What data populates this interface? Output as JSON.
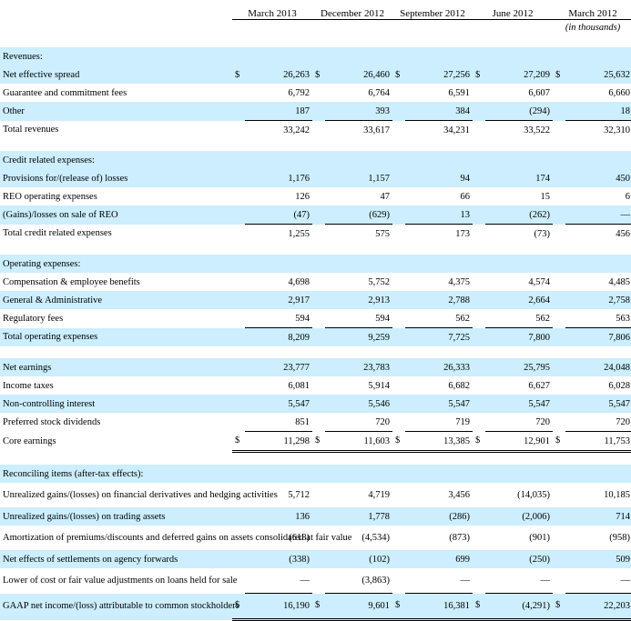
{
  "columns": [
    "March 2013",
    "December 2012",
    "September 2012",
    "June 2012",
    "March 2012"
  ],
  "units_note": "(in thousands)",
  "revenues": {
    "heading": "Revenues:",
    "rows": [
      {
        "label": "Net effective spread",
        "dollar": true,
        "values": [
          "26,263",
          "26,460",
          "27,256",
          "27,209",
          "25,632"
        ]
      },
      {
        "label": "Guarantee and commitment fees",
        "dollar": false,
        "values": [
          "6,792",
          "6,764",
          "6,591",
          "6,607",
          "6,660"
        ]
      },
      {
        "label": "Other",
        "dollar": false,
        "values": [
          "187",
          "393",
          "384",
          "(294)",
          "18"
        ]
      }
    ],
    "total": {
      "label": "Total revenues",
      "values": [
        "33,242",
        "33,617",
        "34,231",
        "33,522",
        "32,310"
      ]
    }
  },
  "credit": {
    "heading": "Credit related expenses:",
    "rows": [
      {
        "label": "Provisions for/(release of) losses",
        "values": [
          "1,176",
          "1,157",
          "94",
          "174",
          "450"
        ]
      },
      {
        "label": "REO operating expenses",
        "values": [
          "126",
          "47",
          "66",
          "15",
          "6"
        ]
      },
      {
        "label": "(Gains)/losses on sale of REO",
        "values": [
          "(47)",
          "(629)",
          "13",
          "(262)",
          "—"
        ]
      }
    ],
    "total": {
      "label": "Total credit related expenses",
      "values": [
        "1,255",
        "575",
        "173",
        "(73)",
        "456"
      ]
    }
  },
  "operating": {
    "heading": "Operating expenses:",
    "rows": [
      {
        "label": "Compensation & employee benefits",
        "values": [
          "4,698",
          "5,752",
          "4,375",
          "4,574",
          "4,485"
        ]
      },
      {
        "label": "General & Administrative",
        "values": [
          "2,917",
          "2,913",
          "2,788",
          "2,664",
          "2,758"
        ]
      },
      {
        "label": "Regulatory fees",
        "values": [
          "594",
          "594",
          "562",
          "562",
          "563"
        ]
      }
    ],
    "total": {
      "label": "Total operating expenses",
      "values": [
        "8,209",
        "9,259",
        "7,725",
        "7,800",
        "7,806"
      ]
    }
  },
  "earnings": {
    "rows": [
      {
        "label": "Net earnings",
        "values": [
          "23,777",
          "23,783",
          "26,333",
          "25,795",
          "24,048"
        ]
      },
      {
        "label": "Income taxes",
        "values": [
          "6,081",
          "5,914",
          "6,682",
          "6,627",
          "6,028"
        ]
      },
      {
        "label": "Non-controlling interest",
        "values": [
          "5,547",
          "5,546",
          "5,547",
          "5,547",
          "5,547"
        ]
      },
      {
        "label": "Preferred stock dividends",
        "values": [
          "851",
          "720",
          "719",
          "720",
          "720"
        ]
      }
    ],
    "core": {
      "label": "Core earnings",
      "values": [
        "11,298",
        "11,603",
        "13,385",
        "12,901",
        "11,753"
      ]
    }
  },
  "reconciling": {
    "heading": "Reconciling items (after-tax effects):",
    "rows": [
      {
        "label": "Unrealized gains/(losses) on financial derivatives and hedging activities",
        "values": [
          "5,712",
          "4,719",
          "3,456",
          "(14,035)",
          "10,185"
        ]
      },
      {
        "label": "Unrealized gains/(losses) on trading assets",
        "values": [
          "136",
          "1,778",
          "(286)",
          "(2,006)",
          "714"
        ]
      },
      {
        "label": "Amortization of premiums/discounts and deferred gains on assets consolidated at fair value",
        "values": [
          "(618)",
          "(4,534)",
          "(873)",
          "(901)",
          "(958)"
        ]
      },
      {
        "label": "Net effects of settlements on agency forwards",
        "values": [
          "(338)",
          "(102)",
          "699",
          "(250)",
          "509"
        ]
      },
      {
        "label": "Lower of cost or fair value adjustments on loans held for sale",
        "values": [
          "—",
          "(3,863)",
          "—",
          "—",
          "—"
        ]
      }
    ],
    "total": {
      "label": "GAAP net income/(loss) attributable to common stockholders",
      "values": [
        "16,190",
        "9,601",
        "16,381",
        "(4,291)",
        "22,203"
      ]
    }
  },
  "currency_symbol": "$",
  "colors": {
    "row_shade": "#cceeff"
  }
}
